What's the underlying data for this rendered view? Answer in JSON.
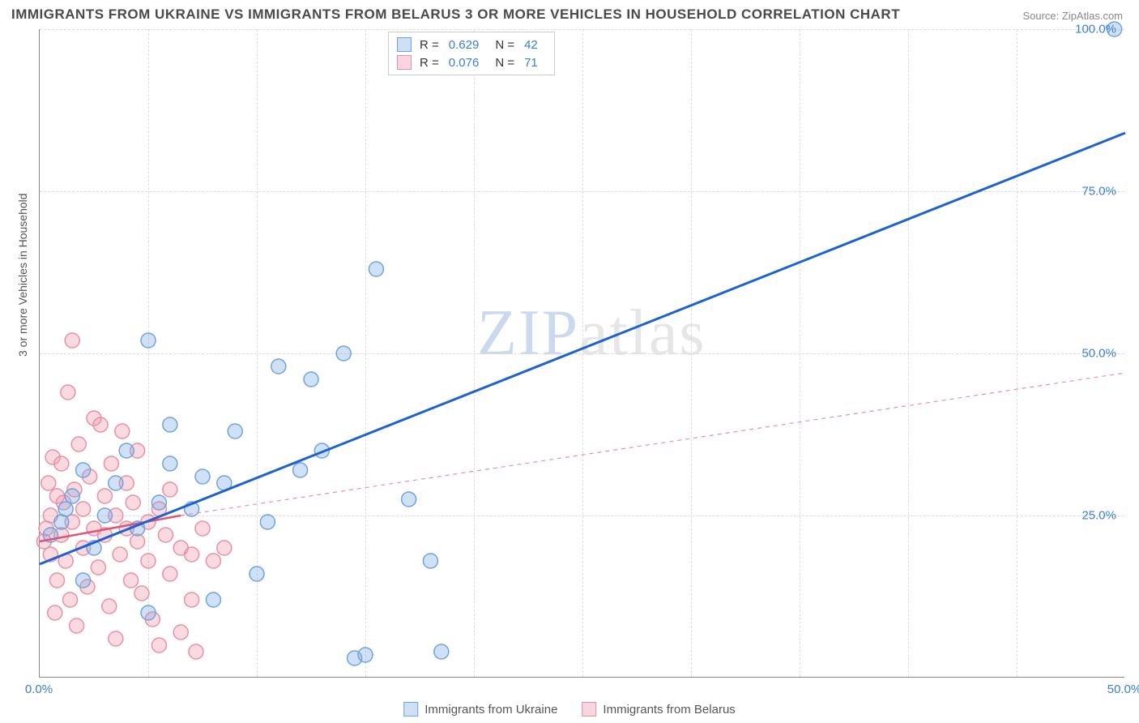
{
  "title": "IMMIGRANTS FROM UKRAINE VS IMMIGRANTS FROM BELARUS 3 OR MORE VEHICLES IN HOUSEHOLD CORRELATION CHART",
  "source": "Source: ZipAtlas.com",
  "y_axis_label": "3 or more Vehicles in Household",
  "watermark_a": "ZIP",
  "watermark_b": "atlas",
  "chart": {
    "type": "scatter",
    "xlim": [
      0,
      50
    ],
    "ylim": [
      0,
      100
    ],
    "x_ticks": [
      0,
      50
    ],
    "x_tick_labels": [
      "0.0%",
      "50.0%"
    ],
    "y_ticks": [
      25,
      50,
      75,
      100
    ],
    "y_tick_labels": [
      "25.0%",
      "50.0%",
      "75.0%",
      "100.0%"
    ],
    "background_color": "#ffffff",
    "grid_color": "#dddddd",
    "axis_color": "#888888",
    "marker_radius": 9,
    "marker_stroke_width": 1.5,
    "series": [
      {
        "id": "ukraine",
        "label": "Immigrants from Ukraine",
        "color_fill": "rgba(120,170,230,0.35)",
        "color_stroke": "#6fa3dd",
        "swatch_fill": "#cfe0f5",
        "swatch_border": "#6fa3dd",
        "r_value": "0.629",
        "n_value": "42",
        "trend": {
          "x1": 0,
          "y1": 17.5,
          "x2": 50,
          "y2": 84,
          "color": "#1e62d0",
          "width": 3,
          "dash": "none"
        },
        "points": [
          [
            0.5,
            22
          ],
          [
            1,
            24
          ],
          [
            1.2,
            26
          ],
          [
            1.5,
            28
          ],
          [
            2,
            15
          ],
          [
            2,
            32
          ],
          [
            2.5,
            20
          ],
          [
            3,
            25
          ],
          [
            3.5,
            30
          ],
          [
            4,
            35
          ],
          [
            4.5,
            23
          ],
          [
            5,
            10
          ],
          [
            5,
            52
          ],
          [
            5.5,
            27
          ],
          [
            6,
            33
          ],
          [
            6,
            39
          ],
          [
            7,
            26
          ],
          [
            7.5,
            31
          ],
          [
            8,
            12
          ],
          [
            8.5,
            30
          ],
          [
            9,
            38
          ],
          [
            10,
            16
          ],
          [
            10.5,
            24
          ],
          [
            11,
            48
          ],
          [
            12,
            32
          ],
          [
            12.5,
            46
          ],
          [
            13,
            35
          ],
          [
            14,
            50
          ],
          [
            14.5,
            3
          ],
          [
            15,
            3.5
          ],
          [
            15.5,
            63
          ],
          [
            17,
            27.5
          ],
          [
            18,
            18
          ],
          [
            18.5,
            4
          ],
          [
            49.5,
            100
          ]
        ]
      },
      {
        "id": "belarus",
        "label": "Immigrants from Belarus",
        "color_fill": "rgba(240,150,170,0.35)",
        "color_stroke": "#e890a5",
        "swatch_fill": "#f7d7df",
        "swatch_border": "#e890a5",
        "r_value": "0.076",
        "n_value": "71",
        "trend_solid": {
          "x1": 0,
          "y1": 21,
          "x2": 6.5,
          "y2": 25,
          "color": "#e05577",
          "width": 2.5,
          "dash": "none"
        },
        "trend_dash": {
          "x1": 6.5,
          "y1": 25,
          "x2": 50,
          "y2": 47,
          "color": "#e890a5",
          "width": 1.2,
          "dash": "5,5"
        },
        "points": [
          [
            0.2,
            21
          ],
          [
            0.3,
            23
          ],
          [
            0.4,
            30
          ],
          [
            0.5,
            25
          ],
          [
            0.5,
            19
          ],
          [
            0.6,
            34
          ],
          [
            0.7,
            10
          ],
          [
            0.8,
            28
          ],
          [
            0.8,
            15
          ],
          [
            1,
            22
          ],
          [
            1,
            33
          ],
          [
            1.1,
            27
          ],
          [
            1.2,
            18
          ],
          [
            1.3,
            44
          ],
          [
            1.4,
            12
          ],
          [
            1.5,
            24
          ],
          [
            1.5,
            52
          ],
          [
            1.6,
            29
          ],
          [
            1.7,
            8
          ],
          [
            1.8,
            36
          ],
          [
            2,
            20
          ],
          [
            2,
            26
          ],
          [
            2.2,
            14
          ],
          [
            2.3,
            31
          ],
          [
            2.5,
            23
          ],
          [
            2.5,
            40
          ],
          [
            2.7,
            17
          ],
          [
            2.8,
            39
          ],
          [
            3,
            22
          ],
          [
            3,
            28
          ],
          [
            3.2,
            11
          ],
          [
            3.3,
            33
          ],
          [
            3.5,
            25
          ],
          [
            3.5,
            6
          ],
          [
            3.7,
            19
          ],
          [
            3.8,
            38
          ],
          [
            4,
            23
          ],
          [
            4,
            30
          ],
          [
            4.2,
            15
          ],
          [
            4.3,
            27
          ],
          [
            4.5,
            21
          ],
          [
            4.5,
            35
          ],
          [
            4.7,
            13
          ],
          [
            5,
            24
          ],
          [
            5,
            18
          ],
          [
            5.2,
            9
          ],
          [
            5.5,
            26
          ],
          [
            5.5,
            5
          ],
          [
            5.8,
            22
          ],
          [
            6,
            16
          ],
          [
            6,
            29
          ],
          [
            6.5,
            20
          ],
          [
            6.5,
            7
          ],
          [
            7,
            19
          ],
          [
            7,
            12
          ],
          [
            7.2,
            4
          ],
          [
            7.5,
            23
          ],
          [
            8,
            18
          ],
          [
            8.5,
            20
          ]
        ]
      }
    ]
  },
  "corr_legend": {
    "r_label": "R =",
    "n_label": "N ="
  }
}
